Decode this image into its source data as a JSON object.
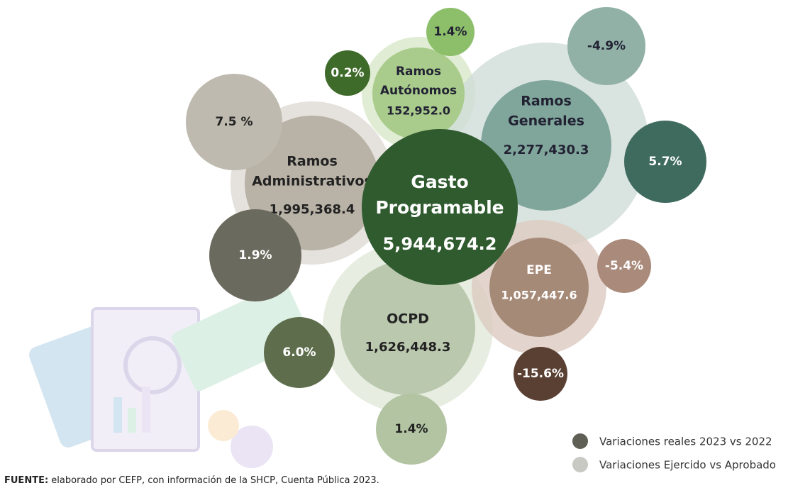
{
  "center": {
    "name_lines": [
      "Gasto",
      "Programable"
    ],
    "value": "5,944,674.2"
  },
  "segments": [
    {
      "name_lines": [
        "Ramos",
        "Autónomos"
      ],
      "value": "152,952.0",
      "real_variation": "0.2%",
      "budget_variation": "1.4%"
    },
    {
      "name_lines": [
        "Ramos",
        "Generales"
      ],
      "value": "2,277,430.3",
      "real_variation": "5.7%",
      "budget_variation": "-4.9%"
    },
    {
      "name_lines": [
        "Ramos",
        "Administrativos"
      ],
      "value": "1,995,368.4",
      "real_variation": "1.9%",
      "budget_variation": "7.5 %"
    },
    {
      "name_lines": [
        "OCPD"
      ],
      "value": "1,626,448.3",
      "real_variation": "6.0%",
      "budget_variation": "1.4%"
    },
    {
      "name_lines": [
        "EPE"
      ],
      "value": "1,057,447.6",
      "real_variation": "-15.6%",
      "budget_variation": "-5.4%"
    }
  ],
  "legend": [
    "Variaciones reales 2023 vs 2022",
    "Variaciones Ejercido vs Aprobado"
  ],
  "source": {
    "label": "FUENTE:",
    "text": " elaborado por CEFP, con información de la SHCP, Cuenta Pública 2023."
  }
}
